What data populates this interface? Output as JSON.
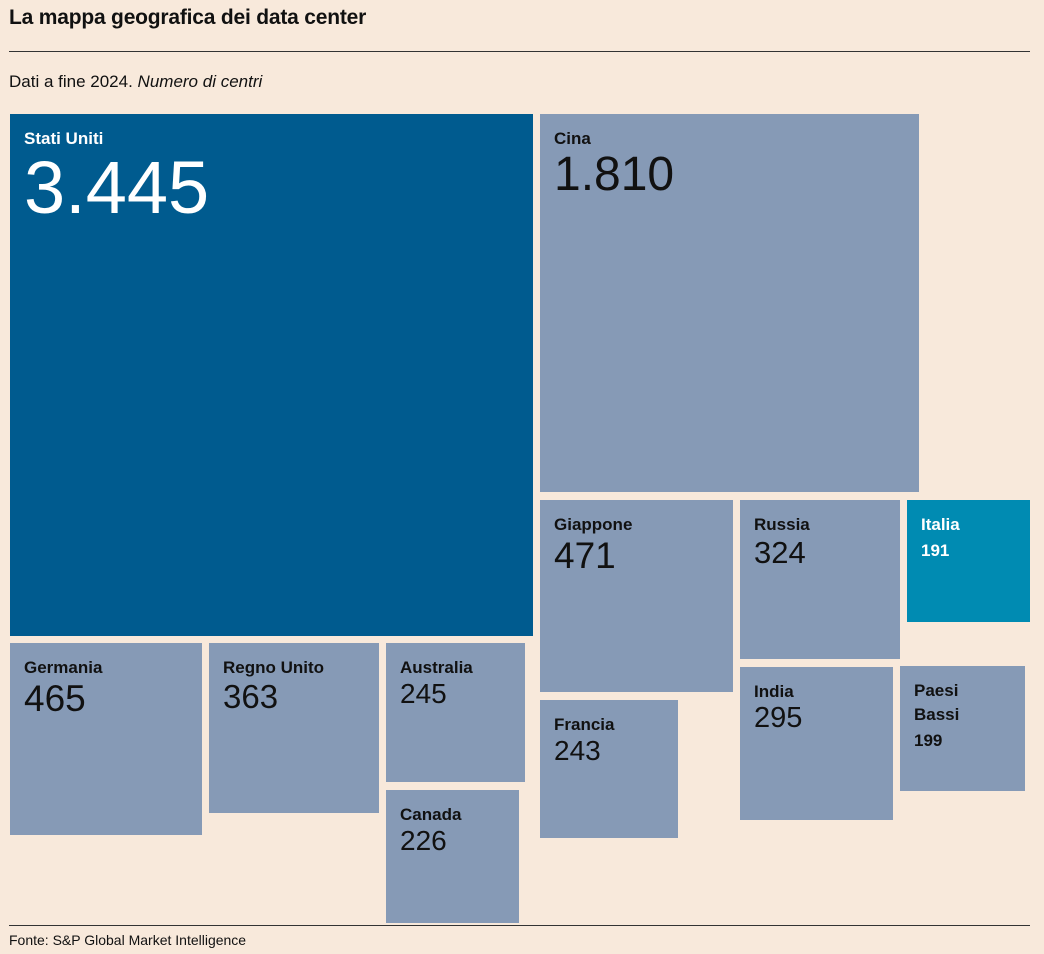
{
  "title": "La mappa geografica dei data center",
  "subtitle": {
    "main": "Dati a fine 2024.",
    "unit": "Numero di centri"
  },
  "source": "Fonte: S&P Global Market Intelligence",
  "colors": {
    "background": "#f8e9db",
    "usa": "#005b8f",
    "italy": "#008bb2",
    "others": "#869ab6"
  },
  "chart_data": {
    "type": "treemap",
    "title": "La mappa geografica dei data center",
    "unit": "Numero di centri",
    "items": [
      {
        "name": "Stati Uniti",
        "label": "3.445",
        "value": 3445
      },
      {
        "name": "Cina",
        "label": "1.810",
        "value": 1810
      },
      {
        "name": "Giappone",
        "label": "471",
        "value": 471
      },
      {
        "name": "Germania",
        "label": "465",
        "value": 465
      },
      {
        "name": "Regno Unito",
        "label": "363",
        "value": 363
      },
      {
        "name": "Russia",
        "label": "324",
        "value": 324
      },
      {
        "name": "India",
        "label": "295",
        "value": 295
      },
      {
        "name": "Australia",
        "label": "245",
        "value": 245
      },
      {
        "name": "Francia",
        "label": "243",
        "value": 243
      },
      {
        "name": "Canada",
        "label": "226",
        "value": 226
      },
      {
        "name": "Paesi Bassi",
        "label": "199",
        "value": 199
      },
      {
        "name": "Italia",
        "label": "191",
        "value": 191
      }
    ]
  }
}
